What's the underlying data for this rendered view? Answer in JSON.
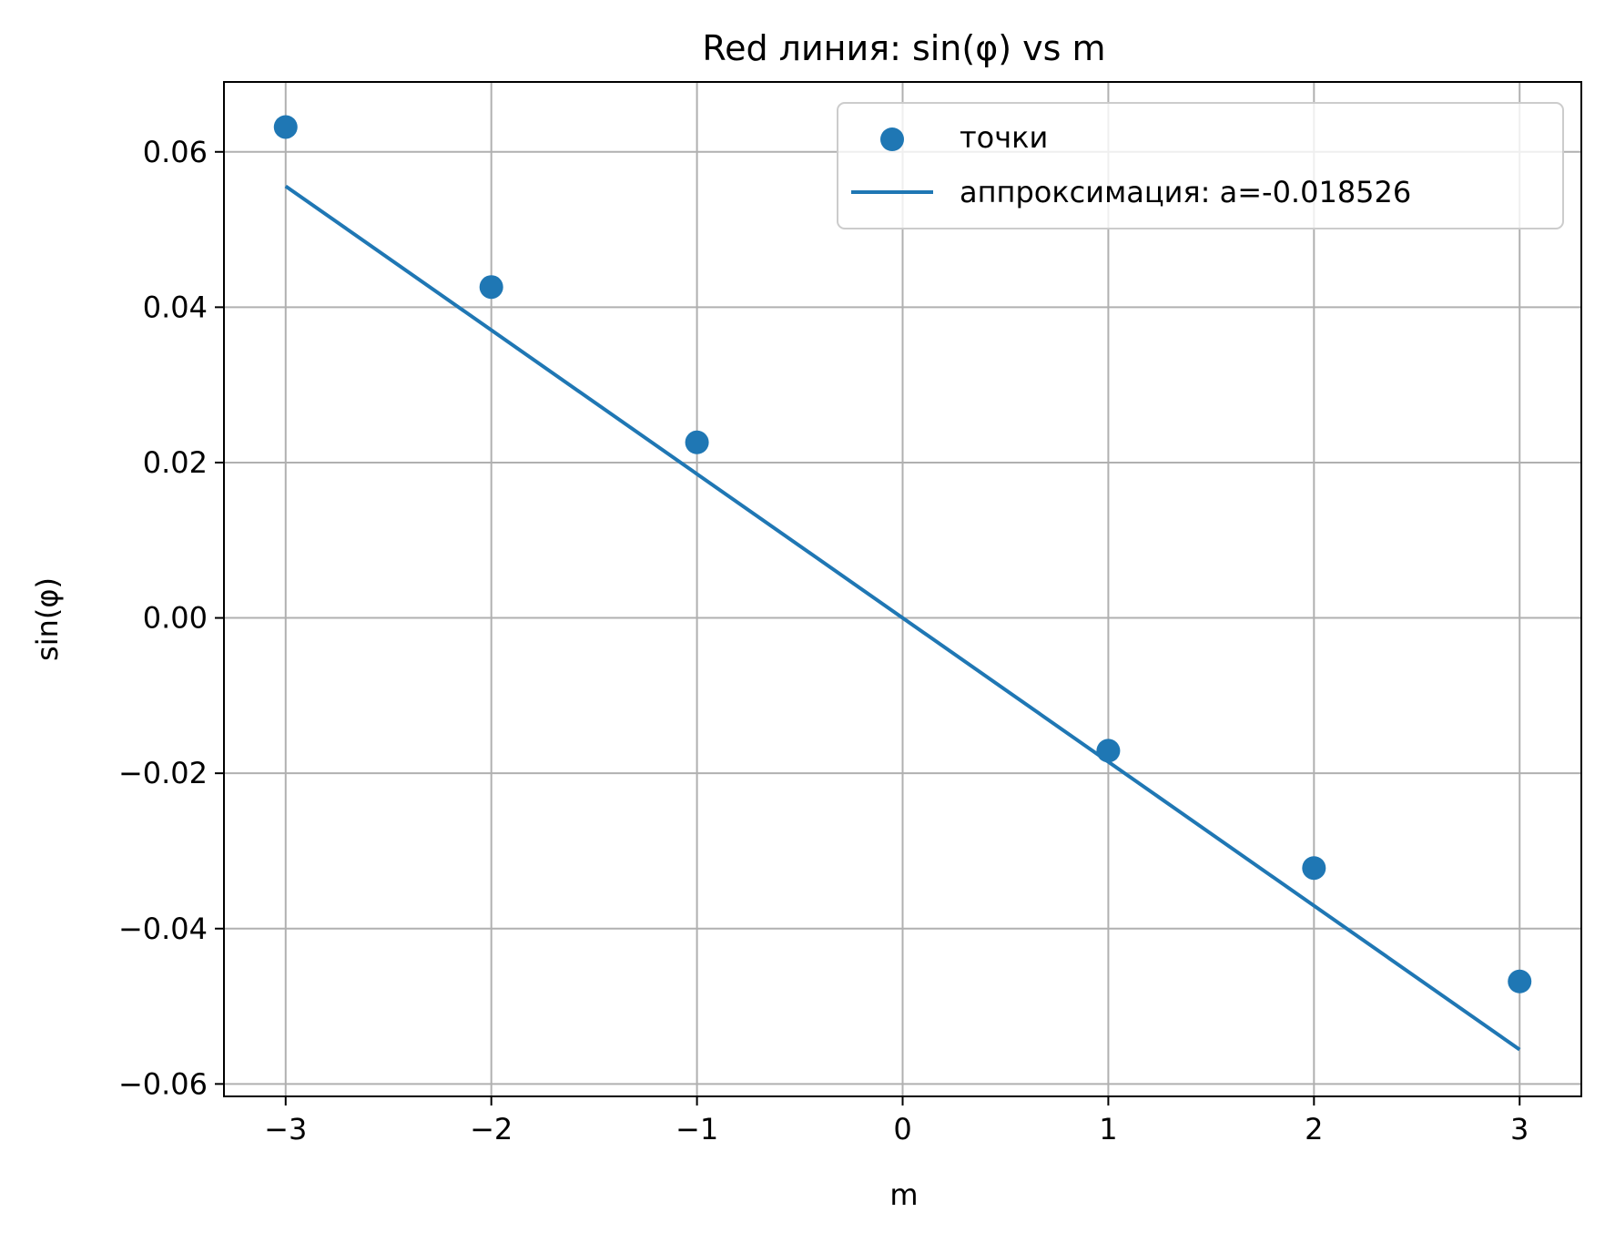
{
  "chart_data": {
    "type": "scatter",
    "title": "Red линия: sin(φ) vs m",
    "xlabel": "m",
    "ylabel": "sin(φ)",
    "xlim": [
      -3.3,
      3.3
    ],
    "ylim": [
      -0.0616,
      0.069
    ],
    "xticks": [
      {
        "value": -3,
        "label": "−3"
      },
      {
        "value": -2,
        "label": "−2"
      },
      {
        "value": -1,
        "label": "−1"
      },
      {
        "value": 0,
        "label": "0"
      },
      {
        "value": 1,
        "label": "1"
      },
      {
        "value": 2,
        "label": "2"
      },
      {
        "value": 3,
        "label": "3"
      }
    ],
    "yticks": [
      {
        "value": -0.06,
        "label": "−0.06"
      },
      {
        "value": -0.04,
        "label": "−0.04"
      },
      {
        "value": -0.02,
        "label": "−0.02"
      },
      {
        "value": 0.0,
        "label": "0.00"
      },
      {
        "value": 0.02,
        "label": "0.02"
      },
      {
        "value": 0.04,
        "label": "0.04"
      },
      {
        "value": 0.06,
        "label": "0.06"
      }
    ],
    "grid": true,
    "legend_position": "top-right",
    "series": [
      {
        "name": "точки",
        "kind": "scatter",
        "color": "#1f77b4",
        "x": [
          -3,
          -2,
          -1,
          1,
          2,
          3
        ],
        "y": [
          0.0632,
          0.0426,
          0.0226,
          -0.0171,
          -0.0322,
          -0.0468
        ]
      },
      {
        "name": "аппроксимация: a=-0.018526",
        "kind": "line",
        "color": "#1f77b4",
        "x": [
          -3,
          3
        ],
        "y": [
          0.055578,
          -0.055578
        ]
      }
    ]
  }
}
